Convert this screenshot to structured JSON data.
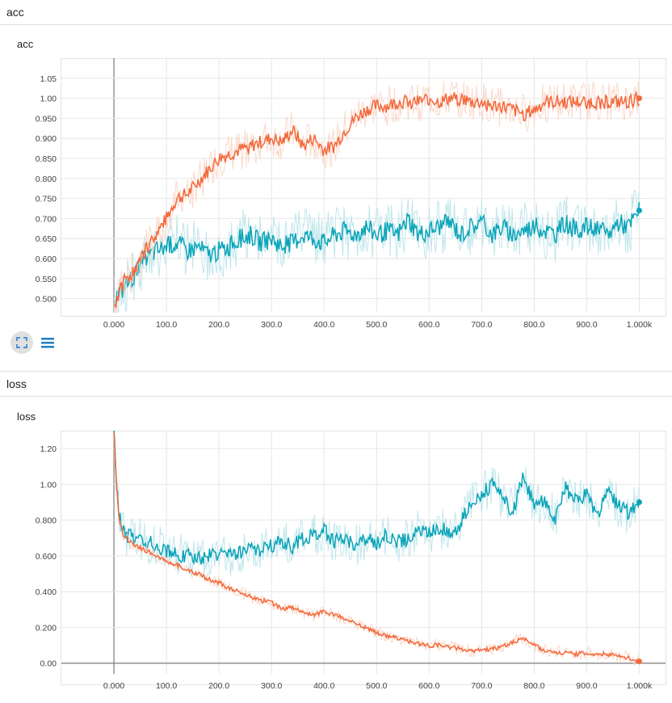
{
  "sections": [
    {
      "header": "acc",
      "card_title": "acc"
    },
    {
      "header": "loss",
      "card_title": "loss"
    }
  ],
  "colors": {
    "train": "#f4683a",
    "validation": "#0aa4b8",
    "train_light": "#fbd8ca",
    "validation_light": "#bfe6ec"
  },
  "toolbar": {
    "fit_icon": "fit-domain-icon",
    "data_icon": "data-lines-icon"
  },
  "chart_data": [
    {
      "type": "line",
      "title": "acc",
      "xlim": [
        -100,
        1050
      ],
      "ylim": [
        0.465,
        1.1
      ],
      "x_ticks": [
        0,
        100,
        200,
        300,
        400,
        500,
        600,
        700,
        800,
        900,
        1000
      ],
      "x_tick_labels": [
        "0.000",
        "100.0",
        "200.0",
        "300.0",
        "400.0",
        "500.0",
        "600.0",
        "700.0",
        "800.0",
        "900.0",
        "1.000k"
      ],
      "y_ticks": [
        0.5,
        0.55,
        0.6,
        0.65,
        0.7,
        0.75,
        0.8,
        0.85,
        0.9,
        0.95,
        1.0,
        1.05
      ],
      "y_tick_labels": [
        "0.500",
        "0.550",
        "0.600",
        "0.650",
        "0.700",
        "0.750",
        "0.800",
        "0.850",
        "0.900",
        "0.950",
        "1.00",
        "1.05"
      ],
      "grid": true,
      "series": [
        {
          "x": [
            0,
            20,
            40,
            60,
            80,
            100,
            120,
            140,
            160,
            180,
            200,
            220,
            240,
            260,
            280,
            300,
            320,
            340,
            360,
            380,
            400,
            420,
            440,
            460,
            480,
            500,
            520,
            540,
            560,
            580,
            600,
            620,
            640,
            660,
            680,
            700,
            720,
            740,
            760,
            780,
            800,
            820,
            840,
            860,
            880,
            900,
            920,
            940,
            960,
            980,
            1000
          ],
          "y": [
            0.48,
            0.55,
            0.57,
            0.62,
            0.66,
            0.7,
            0.75,
            0.76,
            0.79,
            0.82,
            0.85,
            0.86,
            0.87,
            0.88,
            0.89,
            0.9,
            0.89,
            0.92,
            0.88,
            0.9,
            0.87,
            0.88,
            0.92,
            0.95,
            0.97,
            0.98,
            0.98,
            0.99,
            0.99,
            0.99,
            1.0,
            0.99,
            1.0,
            1.0,
            0.99,
            0.99,
            0.98,
            0.98,
            0.97,
            0.96,
            0.97,
            0.99,
            0.99,
            0.99,
            0.99,
            0.99,
            0.99,
            0.99,
            0.99,
            0.99,
            1.0
          ]
        },
        {
          "x": [
            0,
            20,
            40,
            60,
            80,
            100,
            120,
            140,
            160,
            180,
            200,
            220,
            240,
            260,
            280,
            300,
            320,
            340,
            360,
            380,
            400,
            420,
            440,
            460,
            480,
            500,
            520,
            540,
            560,
            580,
            600,
            620,
            640,
            660,
            680,
            700,
            720,
            740,
            760,
            780,
            800,
            820,
            840,
            860,
            880,
            900,
            920,
            940,
            960,
            980,
            1000
          ],
          "y": [
            0.5,
            0.53,
            0.56,
            0.6,
            0.62,
            0.63,
            0.64,
            0.62,
            0.63,
            0.61,
            0.62,
            0.63,
            0.65,
            0.66,
            0.64,
            0.65,
            0.63,
            0.64,
            0.66,
            0.65,
            0.64,
            0.66,
            0.67,
            0.66,
            0.68,
            0.66,
            0.67,
            0.66,
            0.7,
            0.66,
            0.67,
            0.68,
            0.69,
            0.66,
            0.68,
            0.69,
            0.66,
            0.68,
            0.66,
            0.67,
            0.68,
            0.67,
            0.66,
            0.69,
            0.67,
            0.68,
            0.67,
            0.66,
            0.69,
            0.68,
            0.72
          ]
        }
      ]
    },
    {
      "type": "line",
      "title": "loss",
      "xlim": [
        -100,
        1050
      ],
      "ylim": [
        -0.06,
        1.3
      ],
      "x_ticks": [
        0,
        100,
        200,
        300,
        400,
        500,
        600,
        700,
        800,
        900,
        1000
      ],
      "x_tick_labels": [
        "0.000",
        "100.0",
        "200.0",
        "300.0",
        "400.0",
        "500.0",
        "600.0",
        "700.0",
        "800.0",
        "900.0",
        "1.000k"
      ],
      "y_ticks": [
        0.0,
        0.2,
        0.4,
        0.6,
        0.8,
        1.0,
        1.2
      ],
      "y_tick_labels": [
        "0.00",
        "0.200",
        "0.400",
        "0.600",
        "0.800",
        "1.00",
        "1.20"
      ],
      "grid": true,
      "series": [
        {
          "x": [
            0,
            5,
            10,
            20,
            40,
            60,
            80,
            100,
            120,
            140,
            160,
            180,
            200,
            220,
            240,
            260,
            280,
            300,
            320,
            340,
            360,
            380,
            400,
            420,
            440,
            460,
            480,
            500,
            520,
            540,
            560,
            580,
            600,
            620,
            640,
            660,
            680,
            700,
            720,
            740,
            760,
            780,
            800,
            820,
            840,
            860,
            880,
            900,
            920,
            940,
            960,
            980,
            1000
          ],
          "y": [
            1.3,
            1.0,
            0.8,
            0.7,
            0.66,
            0.63,
            0.6,
            0.57,
            0.55,
            0.52,
            0.5,
            0.47,
            0.45,
            0.42,
            0.4,
            0.37,
            0.35,
            0.34,
            0.3,
            0.31,
            0.28,
            0.27,
            0.29,
            0.27,
            0.25,
            0.22,
            0.2,
            0.17,
            0.15,
            0.14,
            0.12,
            0.11,
            0.1,
            0.1,
            0.09,
            0.08,
            0.07,
            0.07,
            0.08,
            0.09,
            0.12,
            0.14,
            0.1,
            0.07,
            0.06,
            0.06,
            0.05,
            0.06,
            0.05,
            0.05,
            0.04,
            0.03,
            0.01
          ]
        },
        {
          "x": [
            0,
            5,
            10,
            20,
            40,
            60,
            80,
            100,
            120,
            140,
            160,
            180,
            200,
            220,
            240,
            260,
            280,
            300,
            320,
            340,
            360,
            380,
            400,
            420,
            440,
            460,
            480,
            500,
            520,
            540,
            560,
            580,
            600,
            620,
            640,
            660,
            680,
            700,
            720,
            740,
            760,
            780,
            800,
            820,
            840,
            860,
            880,
            900,
            920,
            940,
            960,
            980,
            1000
          ],
          "y": [
            1.3,
            1.0,
            0.82,
            0.72,
            0.7,
            0.68,
            0.66,
            0.63,
            0.61,
            0.6,
            0.59,
            0.6,
            0.61,
            0.6,
            0.62,
            0.64,
            0.63,
            0.66,
            0.68,
            0.65,
            0.7,
            0.72,
            0.74,
            0.68,
            0.7,
            0.66,
            0.69,
            0.67,
            0.72,
            0.68,
            0.7,
            0.74,
            0.73,
            0.76,
            0.72,
            0.78,
            0.9,
            0.95,
            1.0,
            0.92,
            0.85,
            1.05,
            0.88,
            0.92,
            0.8,
            0.98,
            0.9,
            0.95,
            0.82,
            0.96,
            0.88,
            0.84,
            0.9
          ]
        }
      ]
    }
  ]
}
